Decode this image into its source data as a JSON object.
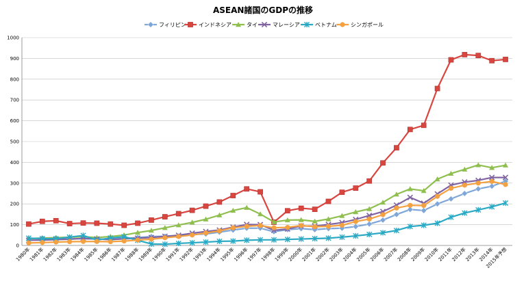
{
  "chart_data": {
    "type": "line",
    "title": "ASEAN諸国のGDPの推移",
    "xlabel": "",
    "ylabel": "",
    "ylim": [
      0,
      1000
    ],
    "yticks": [
      0,
      100,
      200,
      300,
      400,
      500,
      600,
      700,
      800,
      900,
      1000
    ],
    "grid": true,
    "legend_position": "top",
    "categories": [
      "1980年",
      "1981年",
      "1982年",
      "1983年",
      "1984年",
      "1985年",
      "1986年",
      "1987年",
      "1988年",
      "1989年",
      "1990年",
      "1991年",
      "1992年",
      "1993年",
      "1994年",
      "1995年",
      "1996年",
      "1997年",
      "1998年",
      "1999年",
      "2000年",
      "2001年",
      "2002年",
      "2003年",
      "2004年",
      "2005年",
      "2006年",
      "2007年",
      "2008年",
      "2009年",
      "2010年",
      "2011年",
      "2012年",
      "2013年",
      "2014年",
      "2015年予想"
    ],
    "series": [
      {
        "name": "フィリピン",
        "color": "#7ea6d8",
        "marker": "diamond",
        "values": [
          33,
          36,
          37,
          33,
          32,
          31,
          30,
          34,
          38,
          43,
          44,
          45,
          53,
          55,
          64,
          74,
          83,
          83,
          66,
          76,
          81,
          76,
          81,
          83,
          91,
          103,
          122,
          149,
          173,
          168,
          200,
          224,
          250,
          272,
          285,
          309
        ]
      },
      {
        "name": "インドネシア",
        "color": "#d9453f",
        "marker": "square",
        "values": [
          103,
          116,
          119,
          105,
          108,
          107,
          103,
          97,
          107,
          122,
          138,
          153,
          169,
          189,
          209,
          240,
          272,
          258,
          112,
          167,
          179,
          174,
          212,
          256,
          276,
          310,
          397,
          470,
          558,
          578,
          755,
          893,
          918,
          914,
          889,
          895
        ]
      },
      {
        "name": "タイ",
        "color": "#8fbf4f",
        "marker": "triangle",
        "values": [
          33,
          35,
          37,
          40,
          42,
          38,
          43,
          50,
          62,
          72,
          85,
          98,
          111,
          126,
          146,
          168,
          182,
          151,
          113,
          122,
          123,
          116,
          127,
          143,
          161,
          176,
          207,
          246,
          272,
          263,
          319,
          346,
          366,
          387,
          374,
          386
        ]
      },
      {
        "name": "マレーシア",
        "color": "#8064a2",
        "marker": "x",
        "values": [
          25,
          26,
          28,
          30,
          34,
          31,
          28,
          32,
          35,
          38,
          44,
          49,
          59,
          67,
          74,
          88,
          101,
          100,
          73,
          79,
          94,
          93,
          101,
          110,
          125,
          144,
          163,
          194,
          231,
          203,
          248,
          290,
          305,
          313,
          327,
          327
        ]
      },
      {
        "name": "ベトナム",
        "color": "#2aa9c4",
        "marker": "star",
        "values": [
          35,
          33,
          32,
          40,
          48,
          26,
          36,
          42,
          25,
          7,
          6,
          10,
          13,
          16,
          20,
          21,
          25,
          27,
          27,
          29,
          31,
          33,
          35,
          40,
          46,
          53,
          61,
          72,
          91,
          97,
          107,
          136,
          156,
          171,
          186,
          204
        ]
      },
      {
        "name": "シンガポール",
        "color": "#f4a141",
        "marker": "circle",
        "values": [
          12,
          14,
          16,
          18,
          19,
          19,
          18,
          21,
          26,
          30,
          37,
          43,
          50,
          60,
          70,
          85,
          92,
          96,
          85,
          87,
          96,
          90,
          92,
          97,
          115,
          127,
          148,
          180,
          193,
          192,
          236,
          275,
          290,
          300,
          308,
          293
        ]
      }
    ]
  }
}
